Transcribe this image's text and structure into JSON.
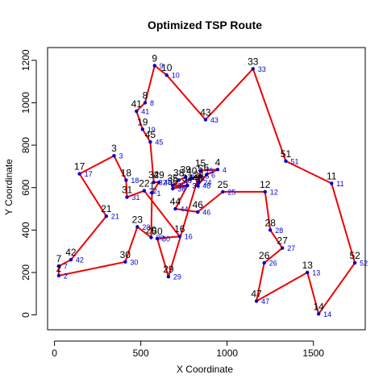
{
  "chart_data": {
    "type": "scatter",
    "title": "Optimized TSP Route",
    "xlabel": "X Coordinate",
    "ylabel": "Y Coordinate",
    "xlim": [
      -40,
      1800
    ],
    "ylim": [
      -70,
      1260
    ],
    "x_ticks": [
      0,
      500,
      1000,
      1500
    ],
    "y_ticks": [
      0,
      200,
      400,
      600,
      800,
      1000,
      1200
    ],
    "grid": false,
    "colors": {
      "route": "#ee0000",
      "point": "#0000cc",
      "label_blue": "#0000cc",
      "label_black": "#000000"
    },
    "points": [
      {
        "id": "1",
        "x": 565,
        "y": 575
      },
      {
        "id": "2",
        "x": 25,
        "y": 185
      },
      {
        "id": "3",
        "x": 345,
        "y": 750
      },
      {
        "id": "4",
        "x": 945,
        "y": 685
      },
      {
        "id": "5",
        "x": 845,
        "y": 655
      },
      {
        "id": "6",
        "x": 880,
        "y": 660
      },
      {
        "id": "7",
        "x": 25,
        "y": 230
      },
      {
        "id": "8",
        "x": 525,
        "y": 1000
      },
      {
        "id": "9",
        "x": 580,
        "y": 1175
      },
      {
        "id": "10",
        "x": 650,
        "y": 1130
      },
      {
        "id": "11",
        "x": 1605,
        "y": 620
      },
      {
        "id": "12",
        "x": 1220,
        "y": 580
      },
      {
        "id": "13",
        "x": 1465,
        "y": 200
      },
      {
        "id": "14",
        "x": 1530,
        "y": 5
      },
      {
        "id": "15",
        "x": 845,
        "y": 680
      },
      {
        "id": "16",
        "x": 725,
        "y": 370
      },
      {
        "id": "17",
        "x": 145,
        "y": 665
      },
      {
        "id": "18",
        "x": 415,
        "y": 635
      },
      {
        "id": "19",
        "x": 510,
        "y": 875
      },
      {
        "id": "20",
        "x": 560,
        "y": 365
      },
      {
        "id": "21",
        "x": 300,
        "y": 465
      },
      {
        "id": "22",
        "x": 520,
        "y": 585
      },
      {
        "id": "23",
        "x": 480,
        "y": 415
      },
      {
        "id": "24",
        "x": 835,
        "y": 625
      },
      {
        "id": "25",
        "x": 975,
        "y": 580
      },
      {
        "id": "26",
        "x": 1215,
        "y": 245
      },
      {
        "id": "27",
        "x": 1320,
        "y": 315
      },
      {
        "id": "28",
        "x": 1250,
        "y": 400
      },
      {
        "id": "29",
        "x": 660,
        "y": 180
      },
      {
        "id": "30",
        "x": 410,
        "y": 250
      },
      {
        "id": "31",
        "x": 420,
        "y": 555
      },
      {
        "id": "32",
        "x": 575,
        "y": 625
      },
      {
        "id": "33",
        "x": 1150,
        "y": 1160
      },
      {
        "id": "34",
        "x": 770,
        "y": 610
      },
      {
        "id": "35",
        "x": 685,
        "y": 610
      },
      {
        "id": "36",
        "x": 685,
        "y": 595
      },
      {
        "id": "37",
        "x": 770,
        "y": 610
      },
      {
        "id": "38",
        "x": 720,
        "y": 635
      },
      {
        "id": "39",
        "x": 760,
        "y": 650
      },
      {
        "id": "40",
        "x": 795,
        "y": 645
      },
      {
        "id": "41",
        "x": 475,
        "y": 960
      },
      {
        "id": "42",
        "x": 95,
        "y": 260
      },
      {
        "id": "43",
        "x": 875,
        "y": 920
      },
      {
        "id": "44",
        "x": 700,
        "y": 500
      },
      {
        "id": "45",
        "x": 555,
        "y": 815
      },
      {
        "id": "46",
        "x": 830,
        "y": 485
      },
      {
        "id": "47",
        "x": 1170,
        "y": 65
      },
      {
        "id": "48",
        "x": 830,
        "y": 610
      },
      {
        "id": "49",
        "x": 605,
        "y": 625
      },
      {
        "id": "50",
        "x": 595,
        "y": 360
      },
      {
        "id": "51",
        "x": 1340,
        "y": 725
      },
      {
        "id": "52",
        "x": 1740,
        "y": 245
      }
    ],
    "route": [
      "1",
      "49",
      "32",
      "45",
      "19",
      "41",
      "8",
      "9",
      "10",
      "43",
      "33",
      "51",
      "11",
      "52",
      "14",
      "13",
      "47",
      "26",
      "27",
      "28",
      "12",
      "25",
      "46",
      "44",
      "34",
      "35",
      "38",
      "39",
      "37",
      "36",
      "40",
      "5",
      "24",
      "48",
      "6",
      "4",
      "15",
      "29",
      "50",
      "16",
      "22",
      "31",
      "18",
      "3",
      "17",
      "21",
      "42",
      "7",
      "2",
      "30",
      "23",
      "20",
      "1"
    ]
  }
}
